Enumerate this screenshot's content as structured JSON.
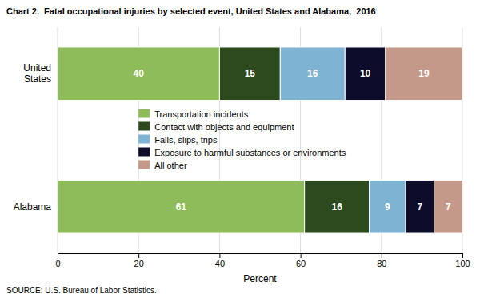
{
  "chart_data": {
    "type": "bar",
    "orientation": "horizontal",
    "stacked": true,
    "data_labels": true,
    "title": "Chart 2.  Fatal occupational injuries by selected event, United States and Alabama,  2016",
    "source": "SOURCE: U.S. Bureau of Labor Statistics.",
    "categories": [
      "United\nStates",
      "Alabama"
    ],
    "series": [
      {
        "name": "Transportation incidents",
        "color": "#8fbc5a",
        "values": [
          40,
          61
        ]
      },
      {
        "name": "Contact with objects and equipment",
        "color": "#2d4a1e",
        "values": [
          15,
          16
        ]
      },
      {
        "name": "Falls, slips, trips",
        "color": "#7fb3d3",
        "values": [
          16,
          9
        ]
      },
      {
        "name": "Exposure to harmful substances or environments",
        "color": "#0d0d2b",
        "values": [
          10,
          7
        ]
      },
      {
        "name": "All other",
        "color": "#c4998a",
        "values": [
          19,
          7
        ]
      }
    ],
    "xlabel": "Percent",
    "xlim": [
      0,
      100
    ],
    "xticks": [
      0,
      20,
      40,
      60,
      80,
      100
    ],
    "grid": true,
    "legend": "center"
  }
}
